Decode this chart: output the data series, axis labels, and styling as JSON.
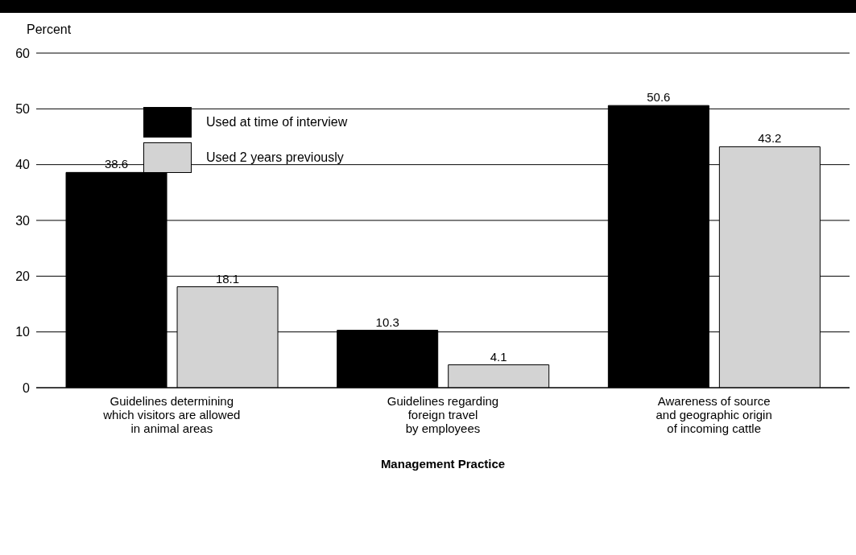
{
  "chart_data": {
    "type": "bar",
    "ylabel": "Percent",
    "xlabel": "Management Practice",
    "categories": [
      "Guidelines determining\nwhich visitors are allowed\nin animal areas",
      "Guidelines regarding\nforeign travel\nby employees",
      "Awareness of source\nand geographic origin\nof incoming cattle"
    ],
    "series": [
      {
        "name": "Used at time of interview",
        "color": "#000000",
        "values": [
          38.6,
          10.3,
          50.6
        ]
      },
      {
        "name": "Used 2 years previously",
        "color": "#d3d3d3",
        "values": [
          18.1,
          4.1,
          43.2
        ]
      }
    ],
    "ylim": [
      0,
      60
    ],
    "yticks": [
      0,
      10,
      20,
      30,
      40,
      50,
      60
    ],
    "grid": "y",
    "legend": "top left",
    "data_labels": true
  }
}
